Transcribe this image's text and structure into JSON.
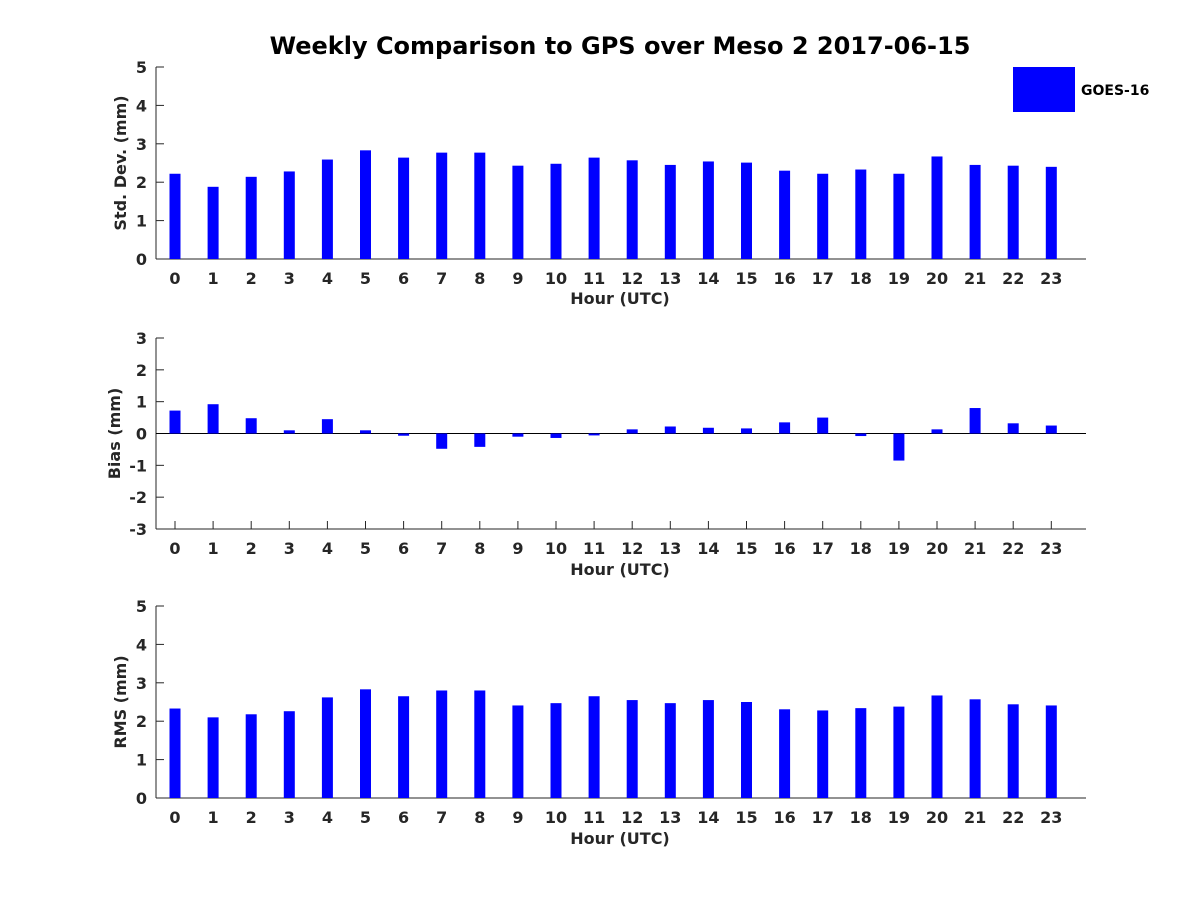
{
  "title": "Weekly Comparison to GPS over Meso 2 2017-06-15",
  "legend": {
    "label": "GOES-16",
    "color": "#0000ff"
  },
  "bar_color": "#0000ff",
  "chart_data": [
    {
      "type": "bar",
      "id": "std",
      "xlabel": "Hour (UTC)",
      "ylabel": "Std. Dev. (mm)",
      "ylim": [
        0,
        5
      ],
      "yticks": [
        0,
        1,
        2,
        3,
        4,
        5
      ],
      "categories": [
        "0",
        "1",
        "2",
        "3",
        "4",
        "5",
        "6",
        "7",
        "8",
        "9",
        "10",
        "11",
        "12",
        "13",
        "14",
        "15",
        "16",
        "17",
        "18",
        "19",
        "20",
        "21",
        "22",
        "23"
      ],
      "series": [
        {
          "name": "GOES-16",
          "values": [
            2.22,
            1.88,
            2.14,
            2.28,
            2.59,
            2.83,
            2.64,
            2.77,
            2.77,
            2.43,
            2.48,
            2.64,
            2.57,
            2.45,
            2.54,
            2.51,
            2.3,
            2.22,
            2.33,
            2.22,
            2.67,
            2.45,
            2.43,
            2.4
          ]
        }
      ]
    },
    {
      "type": "bar",
      "id": "bias",
      "xlabel": "Hour (UTC)",
      "ylabel": "Bias (mm)",
      "ylim": [
        -3,
        3
      ],
      "yticks": [
        -3,
        -2,
        -1,
        0,
        1,
        2,
        3
      ],
      "categories": [
        "0",
        "1",
        "2",
        "3",
        "4",
        "5",
        "6",
        "7",
        "8",
        "9",
        "10",
        "11",
        "12",
        "13",
        "14",
        "15",
        "16",
        "17",
        "18",
        "19",
        "20",
        "21",
        "22",
        "23"
      ],
      "series": [
        {
          "name": "GOES-16",
          "values": [
            0.72,
            0.92,
            0.48,
            0.1,
            0.45,
            0.1,
            -0.07,
            -0.48,
            -0.42,
            -0.1,
            -0.14,
            -0.06,
            0.13,
            0.22,
            0.18,
            0.16,
            0.35,
            0.5,
            -0.08,
            -0.85,
            0.13,
            0.8,
            0.32,
            0.25
          ]
        }
      ]
    },
    {
      "type": "bar",
      "id": "rms",
      "xlabel": "Hour (UTC)",
      "ylabel": "RMS (mm)",
      "ylim": [
        0,
        5
      ],
      "yticks": [
        0,
        1,
        2,
        3,
        4,
        5
      ],
      "categories": [
        "0",
        "1",
        "2",
        "3",
        "4",
        "5",
        "6",
        "7",
        "8",
        "9",
        "10",
        "11",
        "12",
        "13",
        "14",
        "15",
        "16",
        "17",
        "18",
        "19",
        "20",
        "21",
        "22",
        "23"
      ],
      "series": [
        {
          "name": "GOES-16",
          "values": [
            2.33,
            2.1,
            2.18,
            2.26,
            2.62,
            2.83,
            2.65,
            2.8,
            2.8,
            2.41,
            2.47,
            2.65,
            2.55,
            2.47,
            2.55,
            2.5,
            2.31,
            2.28,
            2.34,
            2.38,
            2.67,
            2.57,
            2.44,
            2.41
          ]
        }
      ]
    }
  ]
}
